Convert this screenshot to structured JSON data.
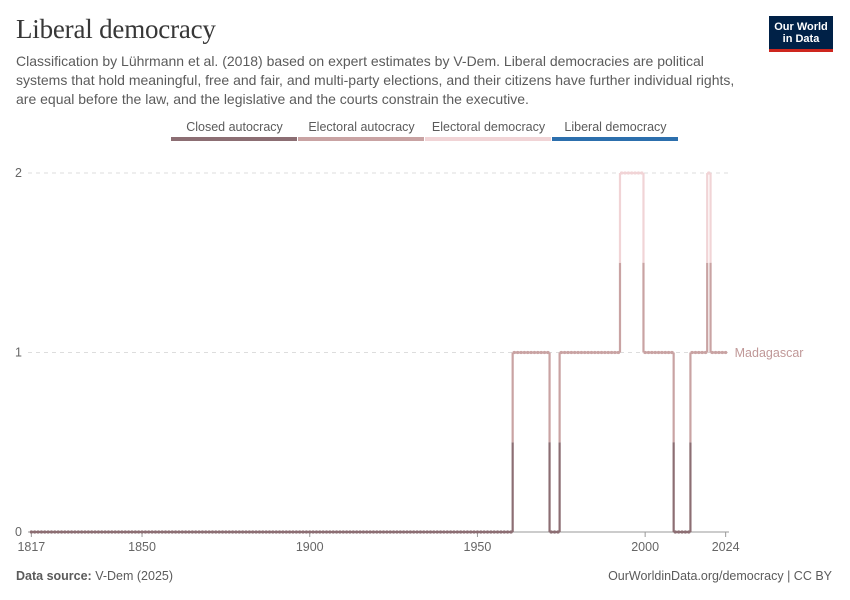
{
  "header": {
    "title": "Liberal democracy",
    "subtitle": "Classification by Lührmann et al. (2018) based on expert estimates by V-Dem. Liberal democracies are political systems that hold meaningful, free and fair, and multi-party elections, and their citizens have further individual rights, are equal before the law, and the legislative and the courts constrain the executive.",
    "logo_line1": "Our World",
    "logo_line2": "in Data"
  },
  "footer": {
    "source_label": "Data source:",
    "source_value": "V-Dem (2025)",
    "url": "OurWorldinData.org/democracy",
    "license": "| CC BY"
  },
  "chart_data": {
    "type": "line",
    "title": "Liberal democracy",
    "xlabel": "",
    "ylabel": "",
    "xlim": [
      1816,
      2025
    ],
    "ylim": [
      0,
      2
    ],
    "x_ticks": [
      1817,
      1850,
      1900,
      1950,
      2000,
      2024
    ],
    "y_ticks": [
      0,
      1,
      2
    ],
    "grid": "horizontal-dashed",
    "legend_position": "top-center",
    "legend": [
      {
        "label": "Closed autocracy",
        "value": 0,
        "color": "#8c6e73"
      },
      {
        "label": "Electoral autocracy",
        "value": 1,
        "color": "#c9a3a3"
      },
      {
        "label": "Electoral democracy",
        "value": 2,
        "color": "#f1d4d6"
      },
      {
        "label": "Liberal democracy",
        "value": 3,
        "color": "#2c6fad"
      }
    ],
    "series": [
      {
        "name": "Madagascar",
        "color": "#c09898",
        "segments": [
          {
            "from": 1817,
            "to": 1960,
            "value": 0
          },
          {
            "from": 1961,
            "to": 1971,
            "value": 1
          },
          {
            "from": 1972,
            "to": 1974,
            "value": 0
          },
          {
            "from": 1975,
            "to": 1992,
            "value": 1
          },
          {
            "from": 1993,
            "to": 1999,
            "value": 2
          },
          {
            "from": 2000,
            "to": 2008,
            "value": 1
          },
          {
            "from": 2009,
            "to": 2013,
            "value": 0
          },
          {
            "from": 2014,
            "to": 2018,
            "value": 1
          },
          {
            "from": 2019,
            "to": 2019,
            "value": 2
          },
          {
            "from": 2020,
            "to": 2024,
            "value": 1
          }
        ]
      }
    ]
  }
}
